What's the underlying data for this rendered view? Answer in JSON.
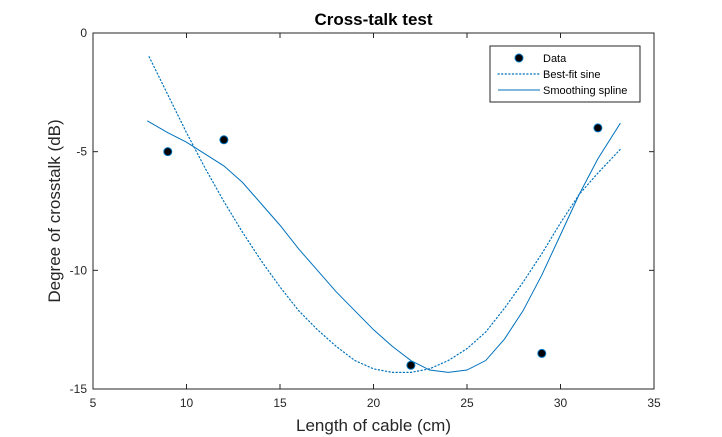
{
  "chart_data": {
    "type": "line",
    "title": "Cross-talk test",
    "xlabel": "Length of cable (cm)",
    "ylabel": "Degree of crosstalk (dB)",
    "xlim": [
      5,
      35
    ],
    "ylim": [
      -15,
      0
    ],
    "xticks": [
      5,
      10,
      15,
      20,
      25,
      30,
      35
    ],
    "yticks": [
      0,
      -5,
      -10,
      -15
    ],
    "grid": false,
    "legend_position": "top-right",
    "colors": {
      "line": "#0072bd",
      "marker_fill": "#000000",
      "axis": "#262626"
    },
    "series": [
      {
        "name": "Data",
        "style": "markers",
        "x": [
          9,
          12,
          22,
          29,
          32
        ],
        "y": [
          -5,
          -4.5,
          -14,
          -13.5,
          -4
        ]
      },
      {
        "name": "Best-fit sine",
        "style": "dotted",
        "x": [
          8,
          9,
          10,
          11,
          12,
          13,
          14,
          15,
          16,
          17,
          18,
          19,
          20,
          21,
          22,
          23,
          24,
          25,
          26,
          27,
          28,
          29,
          30,
          31,
          32,
          33.2
        ],
        "y": [
          -1.0,
          -2.6,
          -4.2,
          -5.7,
          -7.1,
          -8.4,
          -9.6,
          -10.7,
          -11.7,
          -12.5,
          -13.2,
          -13.8,
          -14.15,
          -14.3,
          -14.3,
          -14.15,
          -13.8,
          -13.3,
          -12.6,
          -11.6,
          -10.5,
          -9.3,
          -8.0,
          -6.8,
          -5.9,
          -4.9
        ]
      },
      {
        "name": "Smoothing spline",
        "style": "solid",
        "x": [
          7.9,
          9,
          10,
          11,
          12,
          13,
          14,
          15,
          16,
          17,
          18,
          19,
          20,
          21,
          22,
          23,
          24,
          25,
          26,
          27,
          28,
          29,
          30,
          31,
          32,
          33.2
        ],
        "y": [
          -3.7,
          -4.2,
          -4.6,
          -5.1,
          -5.6,
          -6.3,
          -7.2,
          -8.1,
          -9.1,
          -10.0,
          -10.9,
          -11.7,
          -12.5,
          -13.2,
          -13.8,
          -14.2,
          -14.3,
          -14.2,
          -13.8,
          -12.9,
          -11.7,
          -10.2,
          -8.5,
          -6.8,
          -5.3,
          -3.8
        ]
      }
    ]
  }
}
